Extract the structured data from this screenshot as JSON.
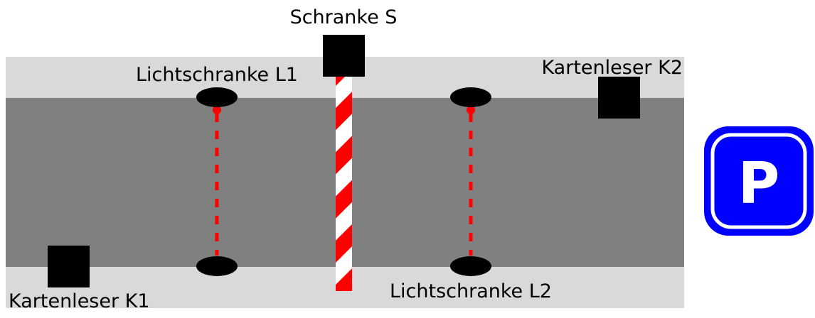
{
  "colors": {
    "background": "#ffffff",
    "sidewalk": "#d9d9d9",
    "road": "#808080",
    "device": "#000000",
    "light_beam": "#ff0000",
    "barrier_stripe_a": "#ff0000",
    "barrier_stripe_b": "#ffffff",
    "parking_sign": "#0000ff"
  },
  "labels": {
    "barrier": "Schranke S",
    "light_barrier_1": "Lichtschranke L1",
    "light_barrier_2": "Lichtschranke L2",
    "card_reader_1": "Kartenleser K1",
    "card_reader_2": "Kartenleser K2"
  },
  "parking_sign": {
    "letter": "P"
  }
}
